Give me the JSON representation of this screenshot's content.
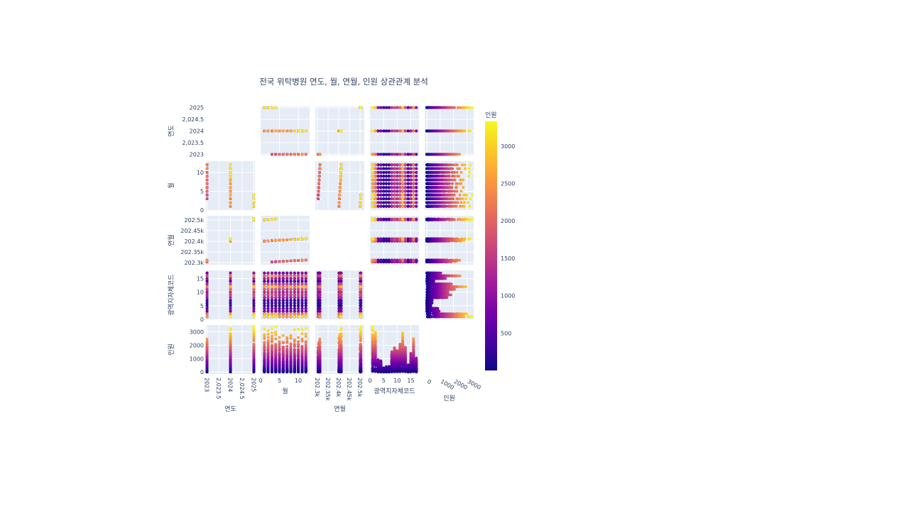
{
  "chart_data": {
    "type": "scatter",
    "subtype": "scatter-matrix",
    "title": "전국 위탁병원 연도, 월, 연월, 인원 상관관계 분석",
    "dimensions": [
      "연도",
      "월",
      "연월",
      "광역지자체코드",
      "인원"
    ],
    "diagonal_visible": false,
    "colorbar": {
      "title": "인원",
      "range": [
        0,
        3330
      ],
      "ticks": [
        500,
        1000,
        1500,
        2000,
        2500,
        3000
      ],
      "colorscale": [
        "#0d0887",
        "#46039f",
        "#7201a8",
        "#9c179e",
        "#bd3786",
        "#d8576b",
        "#ed7953",
        "#fb9f3a",
        "#fdca26",
        "#f0f921"
      ]
    },
    "axis_ticks": {
      "연도": [
        "2023",
        "2,023.5",
        "2024",
        "2,024.5",
        "2025"
      ],
      "월": [
        "0",
        "5",
        "10"
      ],
      "연월": [
        "202.3k",
        "202.35k",
        "202.4k",
        "202.45k",
        "202.5k"
      ],
      "광역지자체코드": [
        "0",
        "5",
        "10",
        "15"
      ],
      "인원": [
        "0",
        "1000",
        "2000",
        "3000"
      ]
    },
    "axis_ranges": {
      "연도": [
        2022.95,
        2025.05
      ],
      "월": [
        0,
        13
      ],
      "연월": [
        202290,
        202520
      ],
      "광역지자체코드": [
        0,
        18
      ],
      "인원": [
        -150,
        3500
      ]
    },
    "data_coverage": {
      "periods": "2023-03 to 2023-12, 2024-01 to 2024-12, 2025-01 to 2025-04",
      "regions": "codes 1 to 17",
      "max_인원": 3330,
      "approx_max_인원_by_region": [
        {
          "region": 1,
          "max": 3300
        },
        {
          "region": 2,
          "max": 2800
        },
        {
          "region": 3,
          "max": 900
        },
        {
          "region": 4,
          "max": 800
        },
        {
          "region": 5,
          "max": 300
        },
        {
          "region": 6,
          "max": 400
        },
        {
          "region": 7,
          "max": 400
        },
        {
          "region": 8,
          "max": 1400
        },
        {
          "region": 9,
          "max": 1800
        },
        {
          "region": 10,
          "max": 1600
        },
        {
          "region": 11,
          "max": 2000
        },
        {
          "region": 12,
          "max": 2900
        },
        {
          "region": 13,
          "max": 1800
        },
        {
          "region": 14,
          "max": 500
        },
        {
          "region": 15,
          "max": 1300
        },
        {
          "region": 16,
          "max": 2300
        },
        {
          "region": 17,
          "max": 1000
        }
      ]
    }
  }
}
